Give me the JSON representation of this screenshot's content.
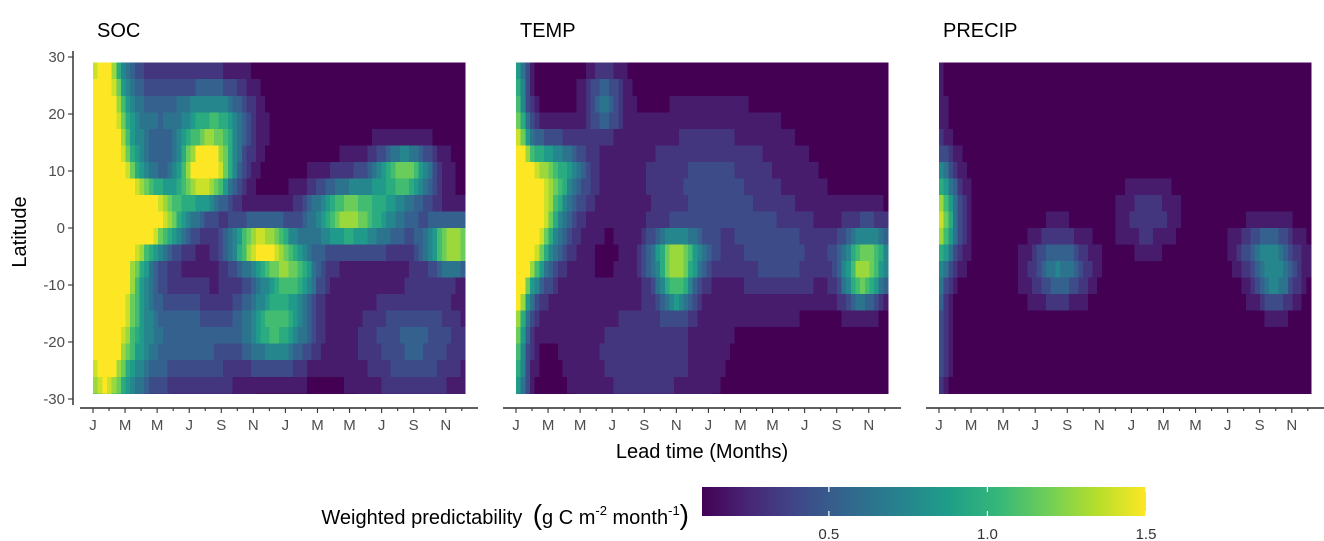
{
  "chart_data": {
    "type": "heatmap",
    "y_axis": {
      "label": "Latitude",
      "range": [
        -30,
        30
      ],
      "ticks": [
        30,
        20,
        10,
        0,
        -10,
        -20,
        -30
      ],
      "tick_labels": [
        "30",
        "20",
        "10",
        "0",
        "-10",
        "-20",
        "-30"
      ],
      "data_range": [
        -29,
        29
      ]
    },
    "x_axis": {
      "label": "Lead time (Months)",
      "tick_labels": [
        "J",
        "M",
        "M",
        "J",
        "S",
        "N",
        "J",
        "M",
        "M",
        "J",
        "S",
        "N"
      ],
      "n_months": 24
    },
    "colorbar": {
      "title_prefix": "Weighted predictability",
      "title_unit_a": "g C m",
      "title_sup_a": "-2",
      "title_unit_b": " month",
      "title_sup_b": "-1",
      "range": [
        0.1,
        1.5
      ],
      "ticks": [
        0.5,
        1.0,
        1.5
      ],
      "tick_labels": [
        "0.5",
        "1.0",
        "1.5"
      ],
      "colors": [
        "#440154",
        "#482878",
        "#3e4a89",
        "#31688e",
        "#26828e",
        "#1f9e89",
        "#35b779",
        "#6ece58",
        "#b5de2b",
        "#fde725"
      ]
    },
    "panels": [
      {
        "title": "SOC",
        "hotspots": [
          {
            "m": 0.6,
            "lat": 10,
            "sm": 0.7,
            "sl": 30,
            "v": 1.4
          },
          {
            "m": 1.2,
            "lat": -4,
            "sm": 1.5,
            "sl": 20,
            "v": 1.55
          },
          {
            "m": 3.5,
            "lat": 2,
            "sm": 1.8,
            "sl": 4,
            "v": 1.4
          },
          {
            "m": 7.0,
            "lat": 10,
            "sm": 1.2,
            "sl": 4,
            "v": 1.45
          },
          {
            "m": 8.0,
            "lat": 18,
            "sm": 1.3,
            "sl": 5,
            "v": 0.6
          },
          {
            "m": 5.5,
            "lat": 20,
            "sm": 2.0,
            "sl": 5,
            "v": 0.45
          },
          {
            "m": 10.5,
            "lat": -3,
            "sm": 1.4,
            "sl": 3,
            "v": 1.4
          },
          {
            "m": 11.5,
            "lat": -17,
            "sm": 1.5,
            "sl": 5,
            "v": 0.95
          },
          {
            "m": 12.5,
            "lat": -8,
            "sm": 1.2,
            "sl": 3,
            "v": 0.8
          },
          {
            "m": 15.5,
            "lat": 2,
            "sm": 1.6,
            "sl": 4,
            "v": 0.9
          },
          {
            "m": 19.5,
            "lat": 10,
            "sm": 1.2,
            "sl": 3,
            "v": 0.95
          },
          {
            "m": 18.0,
            "lat": 3,
            "sm": 2.0,
            "sl": 5,
            "v": 0.55
          },
          {
            "m": 22.5,
            "lat": -3,
            "sm": 1.2,
            "sl": 3,
            "v": 1.3
          },
          {
            "m": 6.0,
            "lat": -20,
            "sm": 2.5,
            "sl": 7,
            "v": 0.45
          },
          {
            "m": 20.0,
            "lat": -20,
            "sm": 2.5,
            "sl": 7,
            "v": 0.4
          }
        ]
      },
      {
        "title": "TEMP",
        "hotspots": [
          {
            "m": 0.0,
            "lat": 0,
            "sm": 0.5,
            "sl": 30,
            "v": 1.2
          },
          {
            "m": 0.5,
            "lat": 0,
            "sm": 1.0,
            "sl": 8,
            "v": 1.3
          },
          {
            "m": 1.5,
            "lat": 3,
            "sm": 1.5,
            "sl": 7,
            "v": 0.75
          },
          {
            "m": 2.5,
            "lat": 10,
            "sm": 1.5,
            "sl": 4,
            "v": 0.55
          },
          {
            "m": 5.5,
            "lat": 22,
            "sm": 0.8,
            "sl": 4,
            "v": 0.5
          },
          {
            "m": 10.0,
            "lat": -5,
            "sm": 1.2,
            "sl": 3,
            "v": 1.05
          },
          {
            "m": 10.0,
            "lat": -11,
            "sm": 0.8,
            "sl": 3,
            "v": 0.7
          },
          {
            "m": 22.0,
            "lat": -5,
            "sm": 1.2,
            "sl": 4,
            "v": 0.95
          },
          {
            "m": 21.5,
            "lat": -10,
            "sm": 0.8,
            "sl": 3,
            "v": 0.65
          },
          {
            "m": 12.0,
            "lat": 8,
            "sm": 3.5,
            "sl": 8,
            "v": 0.3
          },
          {
            "m": 8.0,
            "lat": -22,
            "sm": 3.0,
            "sl": 8,
            "v": 0.25
          },
          {
            "m": 16.5,
            "lat": -5,
            "sm": 2.5,
            "sl": 6,
            "v": 0.3
          }
        ]
      },
      {
        "title": "PRECIP",
        "hotspots": [
          {
            "m": 0.2,
            "lat": 2,
            "sm": 0.8,
            "sl": 6,
            "v": 0.95
          },
          {
            "m": 0.0,
            "lat": -10,
            "sm": 0.4,
            "sl": 20,
            "v": 0.4
          },
          {
            "m": 7.5,
            "lat": -7,
            "sm": 1.2,
            "sl": 4,
            "v": 0.6
          },
          {
            "m": 20.5,
            "lat": -4,
            "sm": 1.2,
            "sl": 3,
            "v": 0.6
          },
          {
            "m": 21.0,
            "lat": -10,
            "sm": 0.9,
            "sl": 3,
            "v": 0.55
          },
          {
            "m": 13.0,
            "lat": 2,
            "sm": 1.2,
            "sl": 4,
            "v": 0.25
          }
        ]
      }
    ],
    "background_value": 0.1,
    "grid": false
  }
}
